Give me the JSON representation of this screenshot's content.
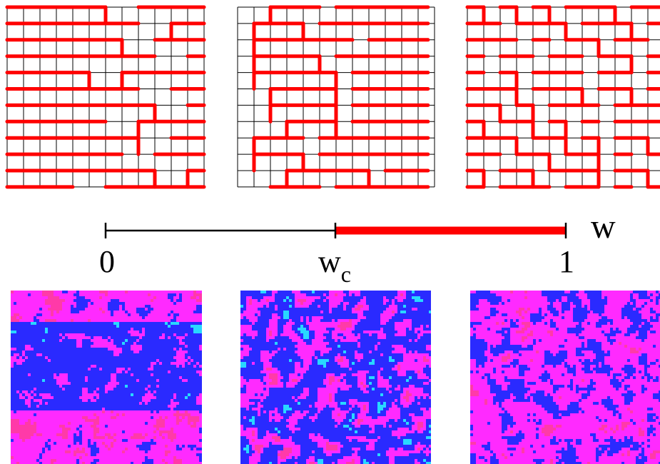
{
  "axis": {
    "variable": "w",
    "tick_start": "0",
    "tick_critical": "w",
    "tick_critical_subscript": "c",
    "tick_end": "1",
    "critical_value": "w_c"
  },
  "colors": {
    "background": "#ffffff",
    "grid_line": "#000000",
    "loop_path": "#ff0000",
    "axis_line": "#000000",
    "highlight_segment": "#ff0000",
    "map_blue": "#2a2aff",
    "map_magenta": "#ff2aff",
    "map_cyan": "#28d8ff",
    "map_pink": "#ff3aa8"
  },
  "panels": {
    "top": [
      {
        "name": "loop-panel-stripes",
        "style": "stripes"
      },
      {
        "name": "loop-panel-meander",
        "style": "meander"
      },
      {
        "name": "loop-panel-random",
        "style": "random"
      }
    ],
    "bottom": [
      {
        "name": "color-map-ordered",
        "style": "banded"
      },
      {
        "name": "color-map-critical",
        "style": "critical"
      },
      {
        "name": "color-map-disordered",
        "style": "disordered"
      }
    ]
  }
}
